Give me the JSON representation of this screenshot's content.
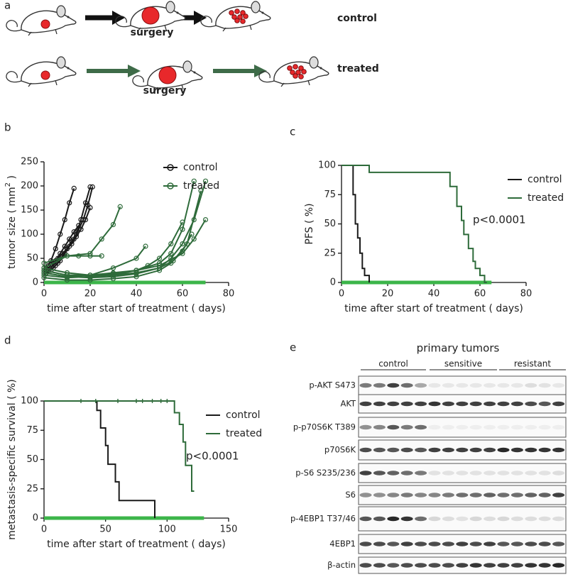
{
  "figure": {
    "panels": [
      "a",
      "b",
      "c",
      "d",
      "e"
    ],
    "diagram": {
      "rows": [
        {
          "label": "control",
          "step_label": "surgery"
        },
        {
          "label": "treated",
          "step_label": "surgery"
        }
      ]
    },
    "blot": {
      "title": "primary tumors",
      "groups": [
        "control",
        "sensitive",
        "resistant"
      ],
      "rows": [
        "p-AKT S473",
        "AKT",
        "p-p70S6K T389",
        "p70S6K",
        "p-S6 S235/236",
        "S6",
        "p-4EBP1 T37/46",
        "4EBP1",
        "β-actin"
      ]
    }
  },
  "chart_data": [
    {
      "type": "line",
      "marker": "circle",
      "ylabel": "tumor size ( mm",
      "ylabel_sup": "2",
      "ylabel_end": " )",
      "xlabel": "time after start of treatment (   days)",
      "xlim": [
        0,
        80
      ],
      "xticks": [
        0,
        20,
        40,
        60,
        80
      ],
      "ylim": [
        0,
        250
      ],
      "yticks": [
        0,
        50,
        100,
        150,
        200,
        250
      ],
      "legend": "upper right",
      "treatment_bar": [
        0,
        70
      ],
      "bar_color": "#3cb54a",
      "series": [
        {
          "name": "control",
          "color": "#1a1a1a",
          "tracks": [
            {
              "x": [
                1,
                3,
                5,
                7,
                9,
                11,
                13
              ],
              "values": [
                30,
                45,
                70,
                100,
                130,
                165,
                195
              ]
            },
            {
              "x": [
                2,
                4,
                6,
                8,
                10,
                12,
                14,
                16,
                18,
                20
              ],
              "values": [
                25,
                30,
                40,
                55,
                70,
                85,
                100,
                130,
                165,
                198
              ]
            },
            {
              "x": [
                3,
                5,
                7,
                9,
                11,
                13,
                15,
                17,
                19,
                21
              ],
              "values": [
                25,
                35,
                45,
                60,
                75,
                90,
                110,
                130,
                160,
                198
              ]
            },
            {
              "x": [
                2,
                4,
                6,
                8,
                10,
                12,
                14,
                16,
                18,
                20
              ],
              "values": [
                35,
                40,
                50,
                60,
                70,
                80,
                95,
                110,
                130,
                155
              ]
            },
            {
              "x": [
                1,
                3,
                5,
                7,
                9,
                11,
                13,
                15
              ],
              "values": [
                20,
                30,
                45,
                60,
                75,
                90,
                105,
                118
              ]
            }
          ]
        },
        {
          "name": "treated",
          "color": "#2e6b3a",
          "tracks": [
            {
              "x": [
                0,
                10,
                20,
                25,
                30,
                33
              ],
              "values": [
                30,
                55,
                60,
                90,
                120,
                157
              ]
            },
            {
              "x": [
                0,
                10,
                15,
                20,
                25
              ],
              "values": [
                40,
                55,
                55,
                55,
                55
              ]
            },
            {
              "x": [
                0,
                10,
                20,
                30,
                40,
                50,
                55,
                60,
                65,
                70
              ],
              "values": [
                15,
                10,
                12,
                15,
                20,
                30,
                50,
                80,
                130,
                210
              ]
            },
            {
              "x": [
                0,
                10,
                20,
                30,
                40,
                50,
                55,
                60,
                65
              ],
              "values": [
                25,
                15,
                15,
                20,
                25,
                40,
                60,
                110,
                210
              ]
            },
            {
              "x": [
                0,
                10,
                20,
                30,
                40,
                50,
                56,
                62,
                68
              ],
              "values": [
                20,
                12,
                10,
                12,
                18,
                30,
                45,
                80,
                190
              ]
            },
            {
              "x": [
                0,
                10,
                20,
                30,
                40,
                45,
                50,
                55,
                60
              ],
              "values": [
                30,
                20,
                15,
                15,
                25,
                35,
                50,
                80,
                125
              ]
            },
            {
              "x": [
                0,
                10,
                20,
                30,
                40,
                50,
                55,
                60,
                64
              ],
              "values": [
                10,
                5,
                5,
                8,
                12,
                25,
                40,
                65,
                100
              ]
            },
            {
              "x": [
                0,
                10,
                20,
                30,
                40,
                50,
                60,
                65,
                70
              ],
              "values": [
                25,
                15,
                15,
                18,
                25,
                35,
                60,
                90,
                130
              ]
            },
            {
              "x": [
                0,
                10,
                20,
                30,
                40,
                44
              ],
              "values": [
                20,
                12,
                15,
                30,
                50,
                75
              ]
            }
          ]
        }
      ]
    },
    {
      "type": "line",
      "ylabel": "PFS   (   %)",
      "xlabel": "time after start of treatment (    days)",
      "xlim": [
        0,
        80
      ],
      "xticks": [
        0,
        20,
        40,
        60,
        80
      ],
      "ylim": [
        0,
        100
      ],
      "yticks": [
        0,
        25,
        50,
        75,
        100
      ],
      "legend": "upper right",
      "annotation": "p<0.0001",
      "treatment_bar": [
        0,
        65
      ],
      "bar_color": "#3cb54a",
      "series": [
        {
          "name": "control",
          "color": "#1a1a1a",
          "x": [
            0,
            5,
            5,
            6,
            6,
            7,
            7,
            8,
            8,
            9,
            9,
            10,
            10,
            12,
            12
          ],
          "values": [
            100,
            100,
            75,
            75,
            50,
            50,
            38,
            38,
            25,
            25,
            12,
            12,
            6,
            6,
            0
          ]
        },
        {
          "name": "treated",
          "color": "#2e6b3a",
          "x": [
            0,
            12,
            12,
            47,
            47,
            50,
            50,
            52,
            52,
            53,
            53,
            55,
            55,
            57,
            57,
            58,
            58,
            60,
            60,
            62,
            62,
            63
          ],
          "values": [
            100,
            100,
            94,
            94,
            82,
            82,
            65,
            65,
            53,
            53,
            41,
            41,
            29,
            29,
            18,
            18,
            12,
            12,
            6,
            6,
            0,
            0
          ]
        }
      ]
    },
    {
      "type": "line",
      "ylabel": "metastasis-specific survival (   %)",
      "xlabel": "time after start of treatment (    days)",
      "xlim": [
        0,
        150
      ],
      "xticks": [
        0,
        50,
        100,
        150
      ],
      "ylim": [
        0,
        100
      ],
      "yticks": [
        0,
        25,
        50,
        75,
        100
      ],
      "legend": "upper right",
      "annotation": "p<0.0001",
      "treatment_bar": [
        0,
        130
      ],
      "bar_color": "#3cb54a",
      "series": [
        {
          "name": "control",
          "color": "#1a1a1a",
          "x": [
            0,
            43,
            43,
            46,
            46,
            50,
            50,
            52,
            52,
            58,
            58,
            61,
            61,
            90,
            90
          ],
          "values": [
            100,
            100,
            92,
            92,
            77,
            77,
            62,
            62,
            46,
            46,
            31,
            31,
            15,
            15,
            0
          ]
        },
        {
          "name": "treated",
          "color": "#2e6b3a",
          "x": [
            0,
            106,
            106,
            110,
            110,
            113,
            113,
            115,
            115,
            120,
            120,
            122
          ],
          "values": [
            100,
            100,
            90,
            90,
            80,
            80,
            65,
            65,
            45,
            45,
            23,
            23
          ],
          "censor_x": [
            30,
            42,
            60,
            75,
            80,
            88,
            95,
            100
          ],
          "censor_y": 100
        }
      ]
    }
  ]
}
